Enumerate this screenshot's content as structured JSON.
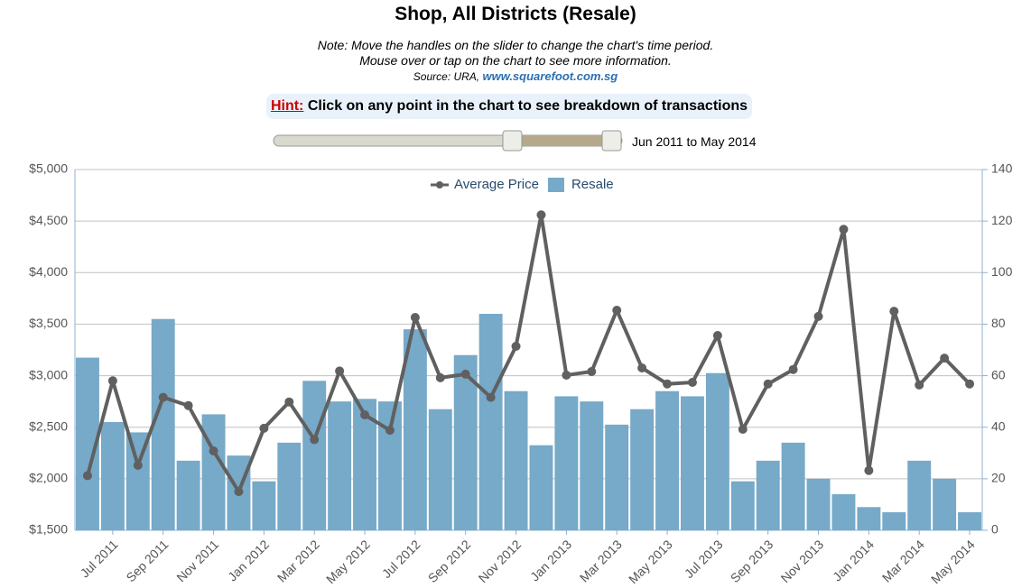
{
  "header": {
    "title": "Shop, All Districts (Resale)",
    "note_lines": [
      "Note: Move the handles on the slider to change the chart's time period.",
      "Mouse over or tap on the chart to see more information."
    ],
    "source": "Source: URA,",
    "source_link": "www.squarefoot.com.sg",
    "hint_label": "Hint:",
    "hint_text": "Click on any point in the chart to see breakdown of transactions",
    "slider_label": "Jun 2011 to May 2014"
  },
  "chart_data": {
    "type": "bar",
    "categories": [
      null,
      "Jul 2011",
      null,
      "Sep 2011",
      null,
      "Nov 2011",
      null,
      "Jan 2012",
      null,
      "Mar 2012",
      null,
      "May 2012",
      null,
      "Jul 2012",
      null,
      "Sep 2012",
      null,
      "Nov 2012",
      null,
      "Jan 2013",
      null,
      "Mar 2013",
      null,
      "May 2013",
      null,
      "Jul 2013",
      null,
      "Sep 2013",
      null,
      "Nov 2013",
      null,
      "Jan 2014",
      null,
      "Mar 2014",
      null,
      "May 2014"
    ],
    "series": [
      {
        "name": "Average Price",
        "type": "line",
        "color": "#606060",
        "values": [
          2030,
          2950,
          2130,
          2790,
          2710,
          2270,
          1875,
          2490,
          2745,
          2380,
          3045,
          2620,
          2470,
          3565,
          2980,
          3015,
          2790,
          3285,
          4560,
          3005,
          3040,
          3635,
          3075,
          2920,
          2935,
          3390,
          2480,
          2920,
          3060,
          3575,
          4420,
          2080,
          3625,
          2910,
          3170,
          2920
        ]
      },
      {
        "name": "Resale",
        "type": "bar",
        "axis": "y2",
        "color": "#77a9c8",
        "values": [
          67,
          42,
          38,
          82,
          27,
          45,
          29,
          19,
          34,
          58,
          50,
          51,
          50,
          78,
          47,
          68,
          84,
          54,
          33,
          52,
          50,
          41,
          47,
          54,
          52,
          61,
          19,
          27,
          34,
          20,
          14,
          9,
          7,
          27,
          20,
          7
        ]
      }
    ],
    "ylim": [
      1500,
      5000
    ],
    "yticks": [
      {
        "value": 1500,
        "label": "$1,500"
      },
      {
        "value": 2000,
        "label": "$2,000"
      },
      {
        "value": 2500,
        "label": "$2,500"
      },
      {
        "value": 3000,
        "label": "$3,000"
      },
      {
        "value": 3500,
        "label": "$3,500"
      },
      {
        "value": 4000,
        "label": "$4,000"
      },
      {
        "value": 4500,
        "label": "$4,500"
      },
      {
        "value": 5000,
        "label": "$5,000"
      }
    ],
    "y2lim": [
      0,
      140
    ],
    "y2ticks": [
      0,
      20,
      40,
      60,
      80,
      100,
      120,
      140
    ],
    "grid": true,
    "legend": "top"
  }
}
